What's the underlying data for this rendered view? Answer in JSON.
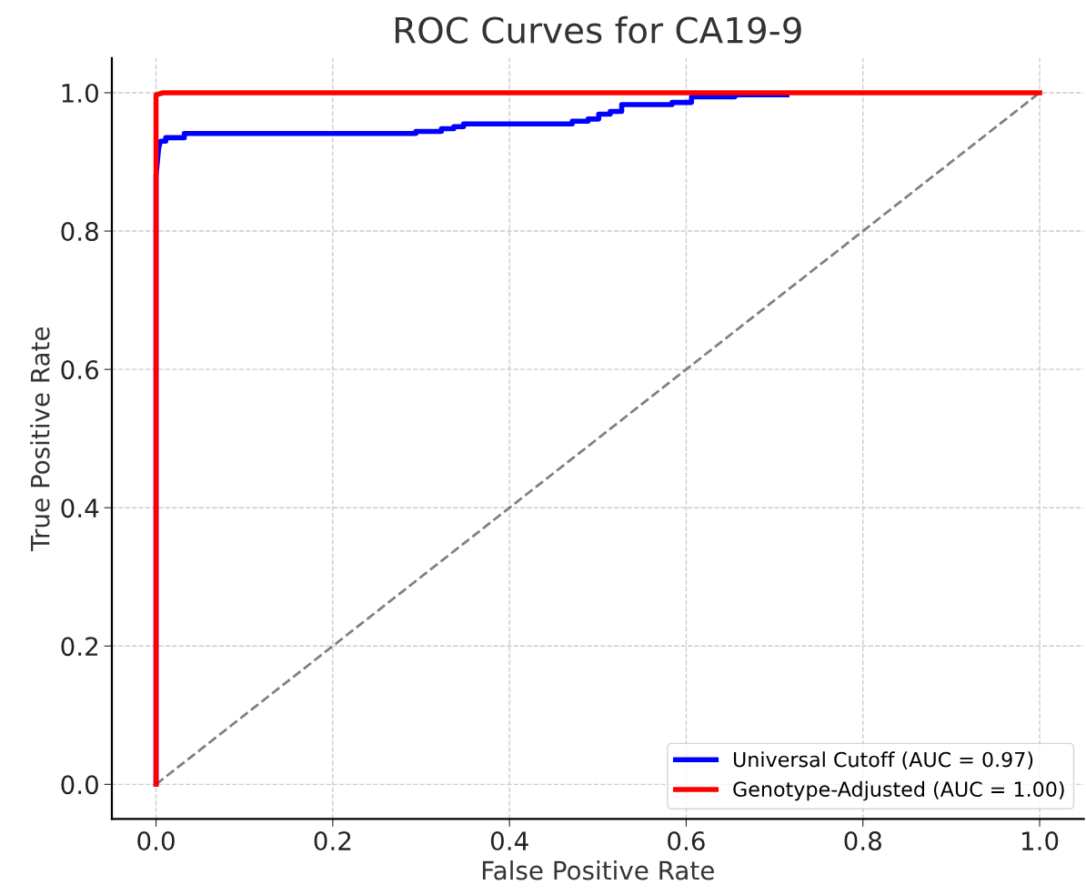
{
  "chart_data": {
    "type": "line",
    "title": "ROC Curves for CA19-9",
    "xlabel": "False Positive Rate",
    "ylabel": "True Positive Rate",
    "xlim": [
      -0.05,
      1.05
    ],
    "ylim": [
      -0.05,
      1.05
    ],
    "xticks": [
      {
        "value": 0,
        "label": "0.0"
      },
      {
        "value": 0.2,
        "label": "0.2"
      },
      {
        "value": 0.4,
        "label": "0.4"
      },
      {
        "value": 0.6,
        "label": "0.6"
      },
      {
        "value": 0.8,
        "label": "0.8"
      },
      {
        "value": 1,
        "label": "1.0"
      }
    ],
    "yticks": [
      {
        "value": 0,
        "label": "0.0"
      },
      {
        "value": 0.2,
        "label": "0.2"
      },
      {
        "value": 0.4,
        "label": "0.4"
      },
      {
        "value": 0.6,
        "label": "0.6"
      },
      {
        "value": 0.8,
        "label": "0.8"
      },
      {
        "value": 1,
        "label": "1.0"
      }
    ],
    "grid": true,
    "legend": "bottom right",
    "marker": "none",
    "series": [
      {
        "name": "Universal Cutoff (AUC = 0.97)",
        "color": "#0000ff",
        "line_style": "solid",
        "x": [
          0,
          0,
          0.003,
          0.005,
          0.011,
          0.011,
          0.032,
          0.032,
          0.294,
          0.294,
          0.323,
          0.323,
          0.337,
          0.337,
          0.348,
          0.348,
          0.471,
          0.471,
          0.489,
          0.489,
          0.501,
          0.501,
          0.514,
          0.514,
          0.527,
          0.527,
          0.584,
          0.584,
          0.606,
          0.606,
          0.655,
          0.655,
          0.714
        ],
        "values": [
          0,
          0.88,
          0.92,
          0.93,
          0.93,
          0.935,
          0.935,
          0.941,
          0.941,
          0.944,
          0.944,
          0.948,
          0.948,
          0.951,
          0.951,
          0.955,
          0.955,
          0.959,
          0.959,
          0.962,
          0.962,
          0.969,
          0.969,
          0.973,
          0.973,
          0.983,
          0.983,
          0.986,
          0.986,
          0.994,
          0.994,
          0.997,
          0.997
        ]
      },
      {
        "name": "Genotype-Adjusted (AUC = 1.00)",
        "color": "#ff0000",
        "line_style": "solid",
        "x": [
          0,
          0,
          0.008,
          1
        ],
        "values": [
          0,
          0.997,
          1,
          1
        ]
      },
      {
        "color": "#808080",
        "line_style": "dashed",
        "x": [
          0,
          1
        ],
        "values": [
          0,
          1
        ]
      }
    ]
  }
}
